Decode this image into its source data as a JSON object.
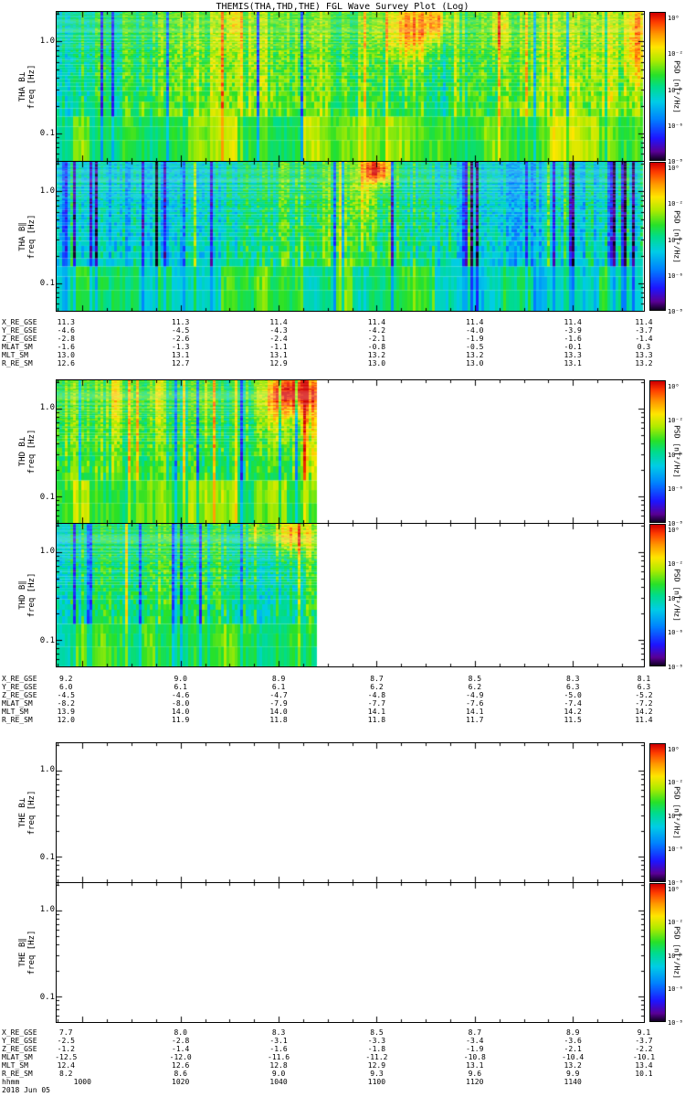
{
  "title": "THEMIS(THA,THD,THE) FGL Wave Survey Plot (Log)",
  "date_label": "2018 Jun 05",
  "chart_data": {
    "type": "heatmap",
    "title": "THEMIS(THA,THD,THE) FGL Wave Survey Plot (Log)",
    "layout": "six stacked dynamic-spectrum (spectrogram) panels, log frequency axis, rainbow PSD color scale, shared UT time axis with ephemeris rows under each satellite pair",
    "freq_axis": {
      "label": "freq [Hz]",
      "scale": "log",
      "range_hz": [
        0.05,
        2.1
      ],
      "major_ticks": [
        "1.0",
        "0.1"
      ]
    },
    "time_axis": {
      "label": "hhmm",
      "ticks": [
        "1000",
        "1020",
        "1040",
        "1100",
        "1120",
        "1140"
      ],
      "date": "2018 Jun 05"
    },
    "colorbar": {
      "label": "PSD [nT²/Hz]",
      "ticks": [
        "10⁰",
        "10⁻²",
        "10⁻⁴",
        "10⁻⁶",
        "10⁻⁸"
      ],
      "colormap": "rainbow",
      "top_color": "#d20000",
      "bottom_color": "#0c001c"
    },
    "panels": [
      {
        "label": "THA B⊥",
        "data_coverage": 1.0,
        "character": "broadband green/cyan wave power across full interval; yellow-orange enhancement near 1110-1120 UT and at right edge; scattered dark-blue dropout columns",
        "tex": {
          "seed": 11,
          "coverage": 1.0,
          "base": 0.56,
          "colVar": 0.16,
          "noise": 0.15,
          "stripeP": 0.1,
          "blueFrac": 0.6,
          "blueAmp": 0.3,
          "yellowAmp": 0.16,
          "drift": 0.06,
          "rightDarken": 0,
          "hotspots": [
            [
              0.6,
              0.1,
              0.05,
              0.22,
              0.3
            ],
            [
              0.645,
              0.06,
              0.02,
              0.12,
              0.22
            ],
            [
              0.75,
              0.1,
              0.018,
              0.18,
              0.16
            ],
            [
              0.985,
              0.15,
              0.02,
              0.3,
              0.2
            ],
            [
              0.3,
              0.07,
              0.012,
              0.15,
              0.14
            ]
          ]
        }
      },
      {
        "label": "THA B∥",
        "data_coverage": 1.0,
        "character": "weaker power than B-perp, many blue low-power columns especially in second half; small orange patch at high frequency near 1105 UT",
        "tex": {
          "seed": 22,
          "coverage": 1.0,
          "base": 0.47,
          "colVar": 0.18,
          "noise": 0.16,
          "stripeP": 0.16,
          "blueFrac": 0.78,
          "blueAmp": 0.3,
          "yellowAmp": 0.15,
          "drift": 0.07,
          "rightDarken": 0.15,
          "hotspots": [
            [
              0.545,
              0.05,
              0.022,
              0.1,
              0.45
            ],
            [
              0.52,
              0.15,
              0.015,
              0.3,
              0.15
            ]
          ]
        }
      },
      {
        "label": "THD B⊥",
        "data_coverage": 0.445,
        "character": "data only for first ~45% of interval; strong green power with yellow streaks and an orange-red burst at high frequency near end of data segment; white (no data) afterwards",
        "tex": {
          "seed": 33,
          "coverage": 0.445,
          "base": 0.58,
          "colVar": 0.15,
          "noise": 0.14,
          "stripeP": 0.15,
          "blueFrac": 0.35,
          "blueAmp": 0.26,
          "yellowAmp": 0.2,
          "drift": 0.06,
          "rightDarken": 0,
          "hotspots": [
            [
              0.405,
              0.08,
              0.045,
              0.16,
              0.4
            ],
            [
              0.37,
              0.22,
              0.025,
              0.3,
              0.18
            ],
            [
              0.43,
              0.45,
              0.012,
              0.5,
              0.15
            ],
            [
              0.1,
              0.12,
              0.012,
              0.25,
              0.15
            ],
            [
              0.17,
              0.1,
              0.01,
              0.3,
              0.14
            ],
            [
              0.25,
              0.15,
              0.012,
              0.35,
              0.13
            ]
          ]
        }
      },
      {
        "label": "THD B∥",
        "data_coverage": 0.445,
        "character": "data only for first ~45% of interval; mixed blue/green power, yellow enhancement at high frequency near end of data segment; white afterwards",
        "tex": {
          "seed": 44,
          "coverage": 0.445,
          "base": 0.5,
          "colVar": 0.17,
          "noise": 0.16,
          "stripeP": 0.16,
          "blueFrac": 0.62,
          "blueAmp": 0.28,
          "yellowAmp": 0.17,
          "drift": 0.06,
          "rightDarken": 0,
          "hotspots": [
            [
              0.4,
              0.07,
              0.035,
              0.14,
              0.34
            ],
            [
              0.34,
              0.05,
              0.018,
              0.1,
              0.2
            ],
            [
              0.43,
              0.35,
              0.012,
              0.5,
              0.14
            ]
          ]
        }
      },
      {
        "label": "THE B⊥",
        "data_coverage": 0.0,
        "character": "no data (blank panel)",
        "tex": {
          "seed": 55,
          "coverage": 0,
          "base": 0,
          "colVar": 0,
          "noise": 0,
          "stripeP": 0,
          "blueFrac": 0,
          "blueAmp": 0,
          "yellowAmp": 0,
          "drift": 0,
          "rightDarken": 0,
          "hotspots": []
        }
      },
      {
        "label": "THE B∥",
        "data_coverage": 0.0,
        "character": "no data (blank panel)",
        "tex": {
          "seed": 66,
          "coverage": 0,
          "base": 0,
          "colVar": 0,
          "noise": 0,
          "stripeP": 0,
          "blueFrac": 0,
          "blueAmp": 0,
          "yellowAmp": 0,
          "drift": 0,
          "rightDarken": 0,
          "hotspots": []
        }
      }
    ],
    "ephemeris": {
      "row_labels": [
        "X_RE_GSE",
        "Y_RE_GSE",
        "Z_RE_GSE",
        "MLAT_SM",
        "MLT_SM",
        "R_RE_SM"
      ],
      "groups": [
        {
          "rows": [
            [
              "11.3",
              "11.3",
              "11.4",
              "11.4",
              "11.4",
              "11.4",
              "11.4"
            ],
            [
              "-4.6",
              "-4.5",
              "-4.3",
              "-4.2",
              "-4.0",
              "-3.9",
              "-3.7"
            ],
            [
              "-2.8",
              "-2.6",
              "-2.4",
              "-2.1",
              "-1.9",
              "-1.6",
              "-1.4"
            ],
            [
              "-1.6",
              "-1.3",
              "-1.1",
              "-0.8",
              "-0.5",
              "-0.1",
              "0.3"
            ],
            [
              "13.0",
              "13.1",
              "13.1",
              "13.2",
              "13.2",
              "13.3",
              "13.3"
            ],
            [
              "12.6",
              "12.7",
              "12.9",
              "13.0",
              "13.0",
              "13.1",
              "13.2"
            ]
          ]
        },
        {
          "rows": [
            [
              "9.2",
              "9.0",
              "8.9",
              "8.7",
              "8.5",
              "8.3",
              "8.1"
            ],
            [
              "6.0",
              "6.1",
              "6.1",
              "6.2",
              "6.2",
              "6.3",
              "6.3"
            ],
            [
              "-4.5",
              "-4.6",
              "-4.7",
              "-4.8",
              "-4.9",
              "-5.0",
              "-5.2"
            ],
            [
              "-8.2",
              "-8.0",
              "-7.9",
              "-7.7",
              "-7.6",
              "-7.4",
              "-7.2"
            ],
            [
              "13.9",
              "14.0",
              "14.0",
              "14.1",
              "14.1",
              "14.2",
              "14.2"
            ],
            [
              "12.0",
              "11.9",
              "11.8",
              "11.8",
              "11.7",
              "11.5",
              "11.4"
            ]
          ]
        },
        {
          "rows": [
            [
              "7.7",
              "8.0",
              "8.3",
              "8.5",
              "8.7",
              "8.9",
              "9.1"
            ],
            [
              "-2.5",
              "-2.8",
              "-3.1",
              "-3.3",
              "-3.4",
              "-3.6",
              "-3.7"
            ],
            [
              "-1.2",
              "-1.4",
              "-1.6",
              "-1.8",
              "-1.9",
              "-2.1",
              "-2.2"
            ],
            [
              "-12.5",
              "-12.0",
              "-11.6",
              "-11.2",
              "-10.8",
              "-10.4",
              "-10.1"
            ],
            [
              "12.4",
              "12.6",
              "12.8",
              "12.9",
              "13.1",
              "13.2",
              "13.4"
            ],
            [
              "8.2",
              "8.6",
              "9.0",
              "9.3",
              "9.6",
              "9.9",
              "10.1"
            ]
          ]
        }
      ]
    }
  }
}
